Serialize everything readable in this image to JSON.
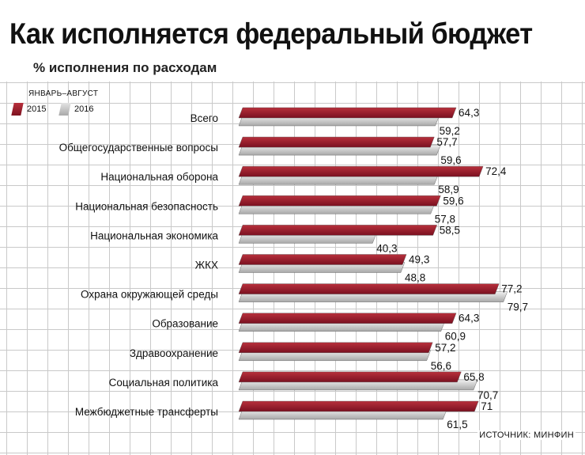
{
  "header": {
    "title": "Как исполняется федеральный бюджет",
    "subtitle": "% исполнения по расходам"
  },
  "legend": {
    "period": "ЯНВАРЬ–АВГУСТ",
    "year_a": "2015",
    "year_b": "2016"
  },
  "source": "ИСТОЧНИК: МИНФИН",
  "colors": {
    "series_2015": "#8e1a28",
    "series_2016": "#c9c9c9",
    "grid": "#c9c9c9"
  },
  "chart_data": {
    "type": "bar",
    "orientation": "horizontal",
    "title": "Как исполняется федеральный бюджет",
    "subtitle": "% исполнения по расходам",
    "categories": [
      "Всего",
      "Общегосударственные вопросы",
      "Национальная оборона",
      "Национальная безопасность",
      "Национальная экономика",
      "ЖКХ",
      "Охрана окружающей среды",
      "Образование",
      "Здравоохранение",
      "Социальная политика",
      "Межбюджетные трансферты"
    ],
    "series": [
      {
        "name": "2015",
        "values": [
          64.3,
          57.7,
          72.4,
          59.6,
          58.5,
          49.3,
          77.2,
          64.3,
          57.2,
          65.8,
          71
        ],
        "labels": [
          "64,3",
          "57,7",
          "72,4",
          "59,6",
          "58,5",
          "49,3",
          "77,2",
          "64,3",
          "57,2",
          "65,8",
          "71"
        ]
      },
      {
        "name": "2016",
        "values": [
          59.2,
          59.6,
          58.9,
          57.8,
          40.3,
          48.8,
          79.7,
          60.9,
          56.6,
          70.7,
          61.5
        ],
        "labels": [
          "59,2",
          "59,6",
          "58,9",
          "57,8",
          "40,3",
          "48,8",
          "79,7",
          "60,9",
          "56,6",
          "70,7",
          "61,5"
        ]
      }
    ],
    "xlim": [
      0,
      80
    ],
    "grid": true,
    "legend_position": "top-left"
  }
}
